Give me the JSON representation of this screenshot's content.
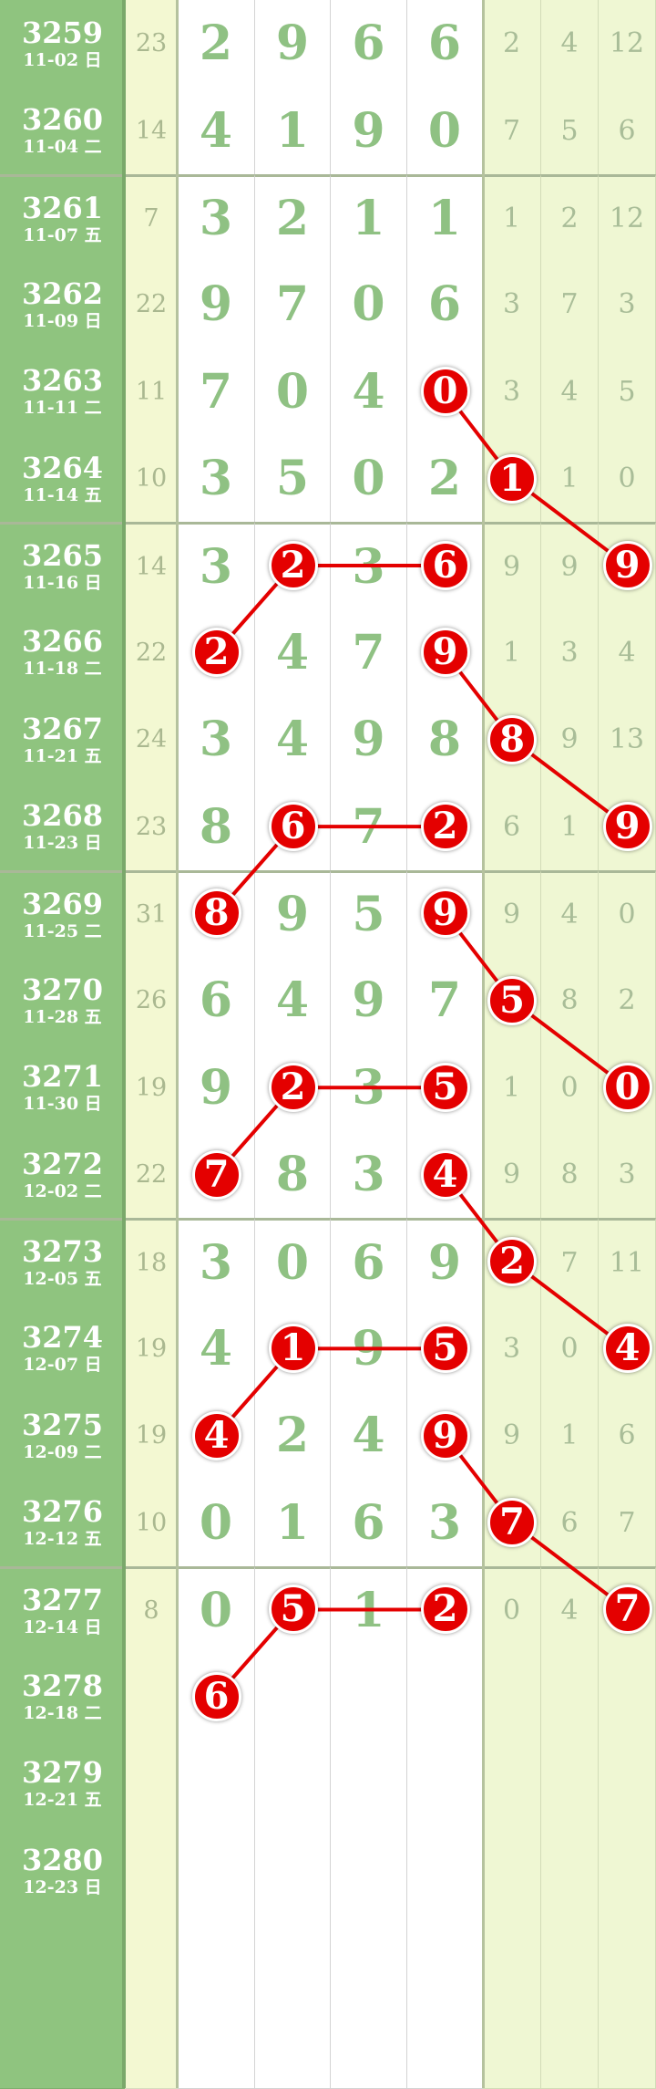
{
  "colors": {
    "issue_bg": "#8fc47f",
    "sum_bg": "#f3f8d2",
    "extra_bg": "#eff7d3",
    "ball": "#e40000",
    "line": "#e40000",
    "digit": "#8fc183"
  },
  "rows": [
    {
      "issue": "3259",
      "date": "11-02 日",
      "sum": "23",
      "nums": [
        "2",
        "9",
        "6",
        "6"
      ],
      "extra": [
        "2",
        "4",
        "12"
      ],
      "hits": []
    },
    {
      "issue": "3260",
      "date": "11-04 二",
      "sum": "14",
      "nums": [
        "4",
        "1",
        "9",
        "0"
      ],
      "extra": [
        "7",
        "5",
        "6"
      ],
      "hits": []
    },
    {
      "issue": "3261",
      "date": "11-07 五",
      "sum": "7",
      "nums": [
        "3",
        "2",
        "1",
        "1"
      ],
      "extra": [
        "1",
        "2",
        "12"
      ],
      "hits": []
    },
    {
      "issue": "3262",
      "date": "11-09 日",
      "sum": "22",
      "nums": [
        "9",
        "7",
        "0",
        "6"
      ],
      "extra": [
        "3",
        "7",
        "3"
      ],
      "hits": []
    },
    {
      "issue": "3263",
      "date": "11-11 二",
      "sum": "11",
      "nums": [
        "7",
        "0",
        "4",
        "0"
      ],
      "extra": [
        "3",
        "4",
        "5"
      ],
      "hits": [
        3
      ]
    },
    {
      "issue": "3264",
      "date": "11-14 五",
      "sum": "10",
      "nums": [
        "3",
        "5",
        "0",
        "2"
      ],
      "extra": [
        "1",
        "1",
        "0"
      ],
      "hits": [
        4
      ]
    },
    {
      "issue": "3265",
      "date": "11-16 日",
      "sum": "14",
      "nums": [
        "3",
        "2",
        "3",
        "6"
      ],
      "extra": [
        "9",
        "9",
        "9"
      ],
      "hits": [
        1,
        3,
        6
      ]
    },
    {
      "issue": "3266",
      "date": "11-18 二",
      "sum": "22",
      "nums": [
        "2",
        "4",
        "7",
        "9"
      ],
      "extra": [
        "1",
        "3",
        "4"
      ],
      "hits": [
        0,
        3
      ]
    },
    {
      "issue": "3267",
      "date": "11-21 五",
      "sum": "24",
      "nums": [
        "3",
        "4",
        "9",
        "8"
      ],
      "extra": [
        "8",
        "9",
        "13"
      ],
      "hits": [
        4
      ]
    },
    {
      "issue": "3268",
      "date": "11-23 日",
      "sum": "23",
      "nums": [
        "8",
        "6",
        "7",
        "2"
      ],
      "extra": [
        "6",
        "1",
        "9"
      ],
      "hits": [
        1,
        3,
        6
      ]
    },
    {
      "issue": "3269",
      "date": "11-25 二",
      "sum": "31",
      "nums": [
        "8",
        "9",
        "5",
        "9"
      ],
      "extra": [
        "9",
        "4",
        "0"
      ],
      "hits": [
        0,
        3
      ]
    },
    {
      "issue": "3270",
      "date": "11-28 五",
      "sum": "26",
      "nums": [
        "6",
        "4",
        "9",
        "7"
      ],
      "extra": [
        "5",
        "8",
        "2"
      ],
      "hits": [
        4
      ]
    },
    {
      "issue": "3271",
      "date": "11-30 日",
      "sum": "19",
      "nums": [
        "9",
        "2",
        "3",
        "5"
      ],
      "extra": [
        "1",
        "0",
        "0"
      ],
      "hits": [
        1,
        3,
        6
      ]
    },
    {
      "issue": "3272",
      "date": "12-02 二",
      "sum": "22",
      "nums": [
        "7",
        "8",
        "3",
        "4"
      ],
      "extra": [
        "9",
        "8",
        "3"
      ],
      "hits": [
        0,
        3
      ]
    },
    {
      "issue": "3273",
      "date": "12-05 五",
      "sum": "18",
      "nums": [
        "3",
        "0",
        "6",
        "9"
      ],
      "extra": [
        "2",
        "7",
        "11"
      ],
      "hits": [
        4
      ]
    },
    {
      "issue": "3274",
      "date": "12-07 日",
      "sum": "19",
      "nums": [
        "4",
        "1",
        "9",
        "5"
      ],
      "extra": [
        "3",
        "0",
        "4"
      ],
      "hits": [
        1,
        3,
        6
      ]
    },
    {
      "issue": "3275",
      "date": "12-09 二",
      "sum": "19",
      "nums": [
        "4",
        "2",
        "4",
        "9"
      ],
      "extra": [
        "9",
        "1",
        "6"
      ],
      "hits": [
        0,
        3
      ]
    },
    {
      "issue": "3276",
      "date": "12-12 五",
      "sum": "10",
      "nums": [
        "0",
        "1",
        "6",
        "3"
      ],
      "extra": [
        "7",
        "6",
        "7"
      ],
      "hits": [
        4
      ]
    },
    {
      "issue": "3277",
      "date": "12-14 日",
      "sum": "8",
      "nums": [
        "0",
        "5",
        "1",
        "2"
      ],
      "extra": [
        "0",
        "4",
        "7"
      ],
      "hits": [
        1,
        3,
        6
      ]
    },
    {
      "issue": "3278",
      "date": "12-18 二",
      "sum": "",
      "nums": [
        "6",
        "",
        "",
        ""
      ],
      "extra": [
        "",
        "",
        ""
      ],
      "hits": [
        0
      ]
    },
    {
      "issue": "3279",
      "date": "12-21 五",
      "sum": "",
      "nums": [
        "",
        "",
        "",
        ""
      ],
      "extra": [
        "",
        "",
        ""
      ],
      "hits": []
    },
    {
      "issue": "3280",
      "date": "12-23 日",
      "sum": "",
      "nums": [
        "",
        "",
        "",
        ""
      ],
      "extra": [
        "",
        "",
        ""
      ],
      "hits": []
    },
    {
      "issue": "",
      "date": "",
      "sum": "",
      "nums": [
        "",
        "",
        "",
        ""
      ],
      "extra": [
        "",
        "",
        ""
      ],
      "hits": []
    },
    {
      "issue": "",
      "date": "",
      "sum": "",
      "nums": [
        "",
        "",
        "",
        ""
      ],
      "extra": [
        "",
        "",
        ""
      ],
      "hits": []
    }
  ],
  "connections": [
    [
      [
        "3263",
        3
      ],
      [
        "3264",
        4
      ],
      [
        "3265",
        6
      ]
    ],
    [
      [
        "3266",
        0
      ],
      [
        "3265",
        1
      ],
      [
        "3265",
        3
      ]
    ],
    [
      [
        "3266",
        3
      ],
      [
        "3267",
        4
      ],
      [
        "3268",
        6
      ]
    ],
    [
      [
        "3269",
        0
      ],
      [
        "3268",
        1
      ],
      [
        "3268",
        3
      ]
    ],
    [
      [
        "3269",
        3
      ],
      [
        "3270",
        4
      ],
      [
        "3271",
        6
      ]
    ],
    [
      [
        "3272",
        0
      ],
      [
        "3271",
        1
      ],
      [
        "3271",
        3
      ]
    ],
    [
      [
        "3272",
        3
      ],
      [
        "3273",
        4
      ],
      [
        "3274",
        6
      ]
    ],
    [
      [
        "3275",
        0
      ],
      [
        "3274",
        1
      ],
      [
        "3274",
        3
      ]
    ],
    [
      [
        "3275",
        3
      ],
      [
        "3276",
        4
      ],
      [
        "3277",
        6
      ]
    ],
    [
      [
        "3278",
        0
      ],
      [
        "3277",
        1
      ],
      [
        "3277",
        3
      ]
    ]
  ]
}
